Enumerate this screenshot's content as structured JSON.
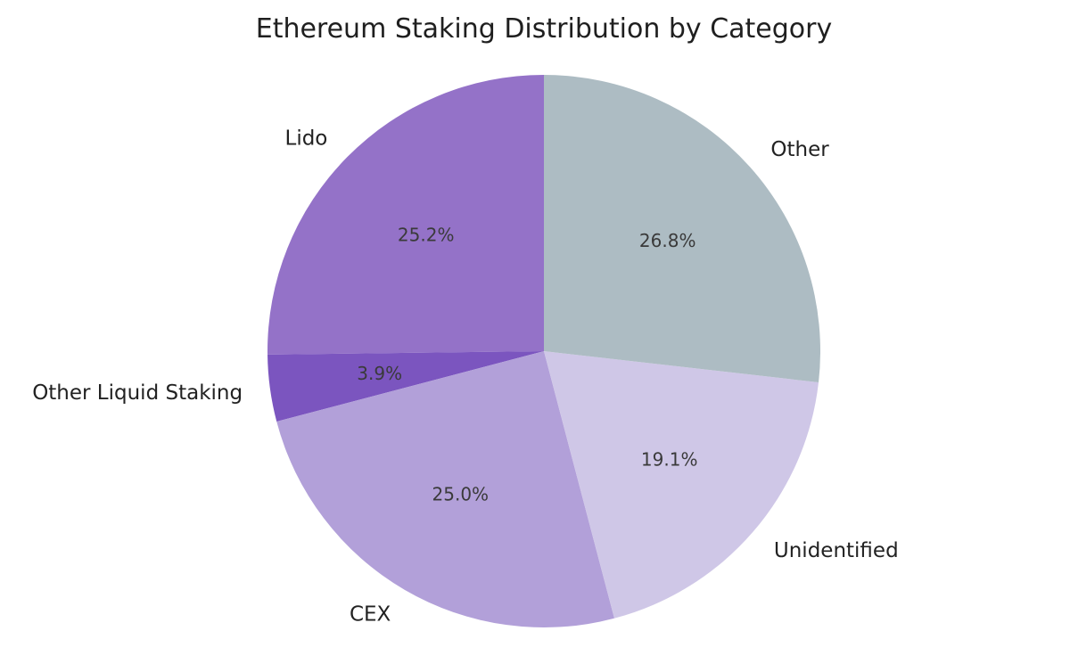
{
  "page": {
    "background": "#ffffff"
  },
  "chart_data": {
    "type": "pie",
    "title": "Ethereum Staking Distribution by Category",
    "title_color": "#1f1f1f",
    "label_color": "#222222",
    "pct_color": "#3a3a3a",
    "start_angle": 90,
    "counterclockwise": true,
    "label_distance": 1.1,
    "pct_distance": 0.6,
    "legend": "none",
    "slices": [
      {
        "label": "Lido",
        "value": 25.2,
        "pct_label": "25.2%",
        "color": "#9472c8"
      },
      {
        "label": "Other Liquid Staking",
        "value": 3.9,
        "pct_label": "3.9%",
        "color": "#7b55bf"
      },
      {
        "label": "CEX",
        "value": 25.0,
        "pct_label": "25.0%",
        "color": "#b2a0d9"
      },
      {
        "label": "Unidentified",
        "value": 19.1,
        "pct_label": "19.1%",
        "color": "#cfc7e7"
      },
      {
        "label": "Other",
        "value": 26.8,
        "pct_label": "26.8%",
        "color": "#adbcc3"
      }
    ]
  }
}
